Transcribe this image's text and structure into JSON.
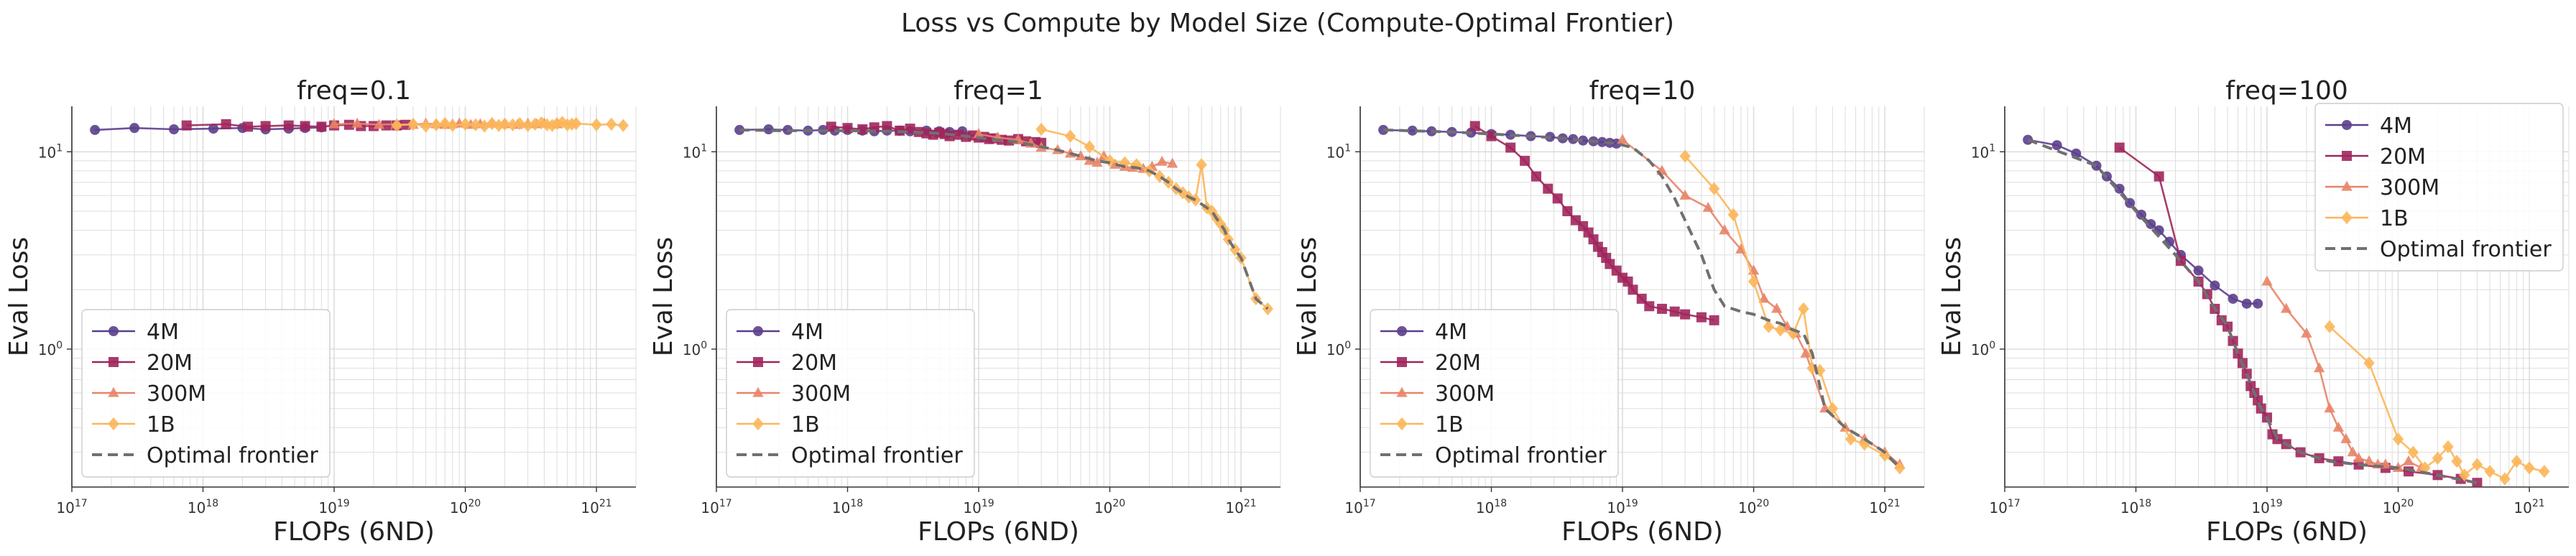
{
  "figure": {
    "title": "Loss vs Compute by Model Size (Compute-Optimal Frontier)"
  },
  "colors": {
    "4M": "#5b3f8c",
    "20M": "#a0265c",
    "300M": "#e88468",
    "1B": "#fbb65a",
    "frontier": "#707070",
    "grid": "#dddddd"
  },
  "chart_data": [
    {
      "type": "line",
      "title": "freq=0.1",
      "xlabel": "FLOPs (6ND)",
      "ylabel": "Eval Loss",
      "xscale": "log",
      "yscale": "log",
      "xlim": [
        1e+17,
        2e+21
      ],
      "ylim": [
        0.2,
        17
      ],
      "xticks": [
        "10^17",
        "10^18",
        "10^19",
        "10^20",
        "10^21"
      ],
      "yticks": [
        "10^0",
        "10^1"
      ],
      "grid": true,
      "legend": "lower-left",
      "series": [
        {
          "name": "4M",
          "marker": "circle",
          "x": [
            1.5e+17,
            3e+17,
            6e+17,
            1.2e+18,
            2e+18,
            3e+18,
            4.5e+18,
            6e+18,
            8e+18
          ],
          "y": [
            12.9,
            13.2,
            13.0,
            13.1,
            13.2,
            13.0,
            13.1,
            13.2,
            13.3
          ]
        },
        {
          "name": "20M",
          "marker": "square",
          "x": [
            7.5e+17,
            1.5e+18,
            2.2e+18,
            3e+18,
            4.5e+18,
            6e+18,
            8e+18,
            1e+19,
            1.3e+19,
            1.6e+19,
            2e+19,
            2.5e+19,
            3e+19,
            3.5e+19
          ],
          "y": [
            13.6,
            13.8,
            13.4,
            13.5,
            13.6,
            13.5,
            13.4,
            13.6,
            13.7,
            13.5,
            13.5,
            13.6,
            13.6,
            13.7
          ]
        },
        {
          "name": "300M",
          "marker": "triangle",
          "x": [
            1e+19,
            1.5e+19,
            2.2e+19,
            3e+19,
            4e+19,
            5e+19,
            6e+19,
            7e+19,
            8e+19,
            9e+19,
            1.1e+20,
            1.3e+20,
            1.6e+20,
            2e+20,
            2.5e+20,
            3e+20,
            3.5e+20,
            4e+20,
            5e+20
          ],
          "y": [
            13.8,
            13.9,
            13.7,
            13.8,
            13.7,
            13.9,
            13.8,
            13.7,
            13.8,
            13.9,
            13.7,
            13.8,
            13.9,
            13.8,
            13.7,
            13.9,
            13.8,
            13.9,
            13.8
          ]
        },
        {
          "name": "1B",
          "marker": "diamond",
          "x": [
            3e+19,
            4e+19,
            5e+19,
            6e+19,
            7e+19,
            8e+19,
            1e+20,
            1.2e+20,
            1.4e+20,
            1.6e+20,
            1.8e+20,
            2e+20,
            2.3e+20,
            2.6e+20,
            3e+20,
            3.4e+20,
            3.8e+20,
            4.2e+20,
            4.6e+20,
            5e+20,
            5.5e+20,
            6e+20,
            6.5e+20,
            7e+20,
            1e+21,
            1.3e+21,
            1.6e+21
          ],
          "y": [
            13.6,
            13.8,
            13.5,
            13.7,
            13.9,
            13.6,
            13.8,
            13.7,
            13.5,
            13.9,
            13.6,
            13.8,
            13.7,
            13.9,
            13.6,
            13.8,
            14.0,
            13.7,
            13.6,
            13.9,
            14.1,
            13.7,
            13.8,
            13.9,
            13.7,
            13.8,
            13.6
          ]
        }
      ],
      "frontier": null
    },
    {
      "type": "line",
      "title": "freq=1",
      "xlabel": "FLOPs (6ND)",
      "ylabel": "Eval Loss",
      "xscale": "log",
      "yscale": "log",
      "xlim": [
        1e+17,
        2e+21
      ],
      "ylim": [
        0.2,
        17
      ],
      "xticks": [
        "10^17",
        "10^18",
        "10^19",
        "10^20",
        "10^21"
      ],
      "yticks": [
        "10^0",
        "10^1"
      ],
      "grid": true,
      "legend": "lower-left",
      "series": [
        {
          "name": "4M",
          "marker": "circle",
          "x": [
            1.5e+17,
            2.5e+17,
            3.5e+17,
            5e+17,
            6.5e+17,
            8e+17,
            1e+18,
            1.3e+18,
            1.6e+18,
            2e+18,
            2.5e+18,
            3e+18,
            4e+18,
            5e+18,
            6e+18,
            7.5e+18
          ],
          "y": [
            12.9,
            13.0,
            12.9,
            12.8,
            12.9,
            12.8,
            12.9,
            12.8,
            12.7,
            12.8,
            12.8,
            12.7,
            12.8,
            12.7,
            12.6,
            12.7
          ]
        },
        {
          "name": "20M",
          "marker": "square",
          "x": [
            7.5e+17,
            1e+18,
            1.3e+18,
            1.6e+18,
            2e+18,
            2.5e+18,
            3e+18,
            3.5e+18,
            4e+18,
            4.5e+18,
            5e+18,
            5.5e+18,
            6e+18,
            7e+18,
            8e+18,
            9e+18,
            1e+19,
            1.1e+19,
            1.2e+19,
            1.3e+19,
            1.5e+19,
            1.7e+19,
            2e+19,
            2.3e+19,
            2.7e+19,
            3e+19
          ],
          "y": [
            13.4,
            13.2,
            13.0,
            13.3,
            13.5,
            12.8,
            13.1,
            12.6,
            12.4,
            12.2,
            12.5,
            12.3,
            12.0,
            12.2,
            11.9,
            12.1,
            11.8,
            11.9,
            11.6,
            11.7,
            11.5,
            11.4,
            11.6,
            11.3,
            11.2,
            11.1
          ]
        },
        {
          "name": "300M",
          "marker": "triangle",
          "x": [
            1e+19,
            1.4e+19,
            2e+19,
            2.5e+19,
            3e+19,
            4e+19,
            5e+19,
            6e+19,
            7e+19,
            8e+19,
            9e+19,
            1.1e+20,
            1.3e+20,
            1.5e+20,
            1.8e+20,
            2.1e+20,
            2.5e+20,
            3e+20
          ],
          "y": [
            12.3,
            11.8,
            11.5,
            11.0,
            10.5,
            10.2,
            9.8,
            9.5,
            9.0,
            8.8,
            9.5,
            8.6,
            8.4,
            8.3,
            8.2,
            8.4,
            8.9,
            8.7
          ]
        },
        {
          "name": "1B",
          "marker": "diamond",
          "x": [
            3e+19,
            5e+19,
            7e+19,
            1e+20,
            1.3e+20,
            1.6e+20,
            2e+20,
            2.4e+20,
            2.8e+20,
            3.2e+20,
            3.6e+20,
            4e+20,
            4.5e+20,
            5e+20,
            5.5e+20,
            6e+20,
            6.5e+20,
            7e+20,
            7.5e+20,
            8e+20,
            9e+20,
            1e+21,
            1.3e+21,
            1.6e+21
          ],
          "y": [
            13.0,
            12.0,
            10.6,
            9.0,
            8.8,
            8.6,
            8.0,
            7.5,
            7.0,
            6.5,
            6.2,
            5.9,
            5.7,
            8.6,
            5.2,
            5.0,
            4.6,
            4.3,
            4.0,
            3.6,
            3.2,
            2.9,
            1.8,
            1.6
          ]
        }
      ],
      "frontier": {
        "name": "Optimal frontier",
        "x": [
          1.5e+17,
          3e+17,
          6e+17,
          1e+18,
          2e+18,
          3e+18,
          5e+18,
          8e+18,
          1.2e+19,
          1.6e+19,
          2e+19,
          3e+19,
          4e+19,
          5e+19,
          6e+19,
          8e+19,
          1e+20,
          1.3e+20,
          1.6e+20,
          2e+20,
          2.4e+20,
          2.8e+20,
          3.2e+20,
          3.6e+20,
          4e+20,
          4.5e+20,
          5.5e+20,
          6e+20,
          6.5e+20,
          7e+20,
          7.5e+20,
          8e+20,
          9e+20,
          1e+21,
          1.3e+21,
          1.6e+21
        ],
        "y": [
          12.9,
          12.8,
          12.8,
          12.8,
          12.7,
          12.6,
          12.4,
          12.0,
          11.6,
          11.4,
          11.2,
          10.6,
          10.2,
          9.8,
          9.5,
          9.0,
          8.8,
          8.4,
          8.3,
          8.0,
          7.5,
          7.0,
          6.5,
          6.2,
          5.9,
          5.7,
          5.2,
          5.0,
          4.6,
          4.3,
          4.0,
          3.6,
          3.2,
          2.9,
          1.8,
          1.6
        ]
      }
    },
    {
      "type": "line",
      "title": "freq=10",
      "xlabel": "FLOPs (6ND)",
      "ylabel": "Eval Loss",
      "xscale": "log",
      "yscale": "log",
      "xlim": [
        1e+17,
        2e+21
      ],
      "ylim": [
        0.2,
        17
      ],
      "xticks": [
        "10^17",
        "10^18",
        "10^19",
        "10^20",
        "10^21"
      ],
      "yticks": [
        "10^0",
        "10^1"
      ],
      "grid": true,
      "legend": "lower-left",
      "series": [
        {
          "name": "4M",
          "marker": "circle",
          "x": [
            1.5e+17,
            2.5e+17,
            3.5e+17,
            5e+17,
            7e+17,
            1e+18,
            1.4e+18,
            2e+18,
            2.8e+18,
            3.5e+18,
            4.2e+18,
            5e+18,
            6e+18,
            7e+18,
            8e+18,
            9e+18
          ],
          "y": [
            12.9,
            12.8,
            12.7,
            12.6,
            12.5,
            12.3,
            12.2,
            12.0,
            11.9,
            11.7,
            11.6,
            11.4,
            11.3,
            11.2,
            11.1,
            11.0
          ]
        },
        {
          "name": "20M",
          "marker": "square",
          "x": [
            7.5e+17,
            1e+18,
            1.4e+18,
            1.8e+18,
            2.2e+18,
            2.7e+18,
            3.2e+18,
            3.8e+18,
            4.4e+18,
            5e+18,
            5.5e+18,
            6e+18,
            6.5e+18,
            7e+18,
            7.5e+18,
            8e+18,
            9e+18,
            1e+19,
            1.1e+19,
            1.2e+19,
            1.4e+19,
            1.6e+19,
            2e+19,
            2.5e+19,
            3e+19,
            4e+19,
            5e+19
          ],
          "y": [
            13.5,
            12.0,
            10.5,
            9.0,
            7.5,
            6.5,
            5.8,
            5.0,
            4.5,
            4.2,
            3.9,
            3.6,
            3.3,
            3.1,
            2.9,
            2.7,
            2.5,
            2.3,
            2.2,
            2.0,
            1.8,
            1.65,
            1.6,
            1.55,
            1.5,
            1.45,
            1.4
          ]
        },
        {
          "name": "300M",
          "marker": "triangle",
          "x": [
            1e+19,
            2e+19,
            3e+19,
            4.5e+19,
            6e+19,
            8e+19,
            1e+20,
            1.2e+20,
            1.5e+20,
            1.8e+20,
            2.1e+20,
            2.5e+20,
            3.5e+20,
            5e+20,
            7e+20,
            1e+21,
            1.3e+21
          ],
          "y": [
            11.5,
            8.0,
            6.0,
            5.2,
            4.0,
            3.2,
            2.5,
            1.8,
            1.6,
            1.3,
            1.2,
            0.95,
            0.5,
            0.4,
            0.35,
            0.3,
            0.26
          ]
        },
        {
          "name": "1B",
          "marker": "diamond",
          "x": [
            3e+19,
            5e+19,
            7e+19,
            1e+20,
            1.3e+20,
            1.6e+20,
            2e+20,
            2.4e+20,
            2.8e+20,
            3.2e+20,
            4e+20,
            5.5e+20,
            7e+20,
            1e+21,
            1.3e+21
          ],
          "y": [
            9.5,
            6.5,
            4.8,
            2.2,
            1.3,
            1.25,
            1.2,
            1.6,
            0.8,
            0.78,
            0.5,
            0.35,
            0.33,
            0.29,
            0.25
          ]
        }
      ],
      "frontier": {
        "name": "Optimal frontier",
        "x": [
          1.5e+17,
          5e+17,
          1e+18,
          2e+18,
          3.5e+18,
          5e+18,
          7e+18,
          9e+18,
          1.2e+19,
          1.6e+19,
          2e+19,
          2.5e+19,
          3e+19,
          4e+19,
          5e+19,
          6e+19,
          8e+19,
          1e+20,
          1.3e+20,
          1.6e+20,
          2e+20,
          2.4e+20,
          2.8e+20,
          3.5e+20,
          5e+20,
          7e+20,
          1e+21,
          1.3e+21
        ],
        "y": [
          12.9,
          12.6,
          12.3,
          12.0,
          11.7,
          11.4,
          11.2,
          11.0,
          10.5,
          9.0,
          7.5,
          5.8,
          4.5,
          3.0,
          2.0,
          1.65,
          1.55,
          1.5,
          1.4,
          1.35,
          1.25,
          1.2,
          0.95,
          0.5,
          0.4,
          0.35,
          0.3,
          0.25
        ]
      }
    },
    {
      "type": "line",
      "title": "freq=100",
      "xlabel": "FLOPs (6ND)",
      "ylabel": "Eval Loss",
      "xscale": "log",
      "yscale": "log",
      "xlim": [
        1e+17,
        2e+21
      ],
      "ylim": [
        0.2,
        17
      ],
      "xticks": [
        "10^17",
        "10^18",
        "10^19",
        "10^20",
        "10^21"
      ],
      "yticks": [
        "10^0",
        "10^1"
      ],
      "grid": true,
      "legend": "upper-right",
      "series": [
        {
          "name": "4M",
          "marker": "circle",
          "x": [
            1.5e+17,
            2.5e+17,
            3.5e+17,
            5e+17,
            6e+17,
            7.5e+17,
            9e+17,
            1.1e+18,
            1.3e+18,
            1.5e+18,
            1.8e+18,
            2.2e+18,
            3e+18,
            4e+18,
            5.5e+18,
            7e+18,
            8.5e+18
          ],
          "y": [
            11.5,
            10.8,
            9.8,
            8.5,
            7.5,
            6.5,
            5.5,
            4.8,
            4.3,
            4.0,
            3.5,
            3.0,
            2.5,
            2.1,
            1.8,
            1.7,
            1.7
          ]
        },
        {
          "name": "20M",
          "marker": "square",
          "x": [
            7.5e+17,
            1.5e+18,
            2.2e+18,
            3e+18,
            3.5e+18,
            4e+18,
            4.5e+18,
            5e+18,
            5.5e+18,
            6e+18,
            6.5e+18,
            7e+18,
            7.5e+18,
            8e+18,
            8.5e+18,
            9e+18,
            1e+19,
            1.1e+19,
            1.2e+19,
            1.4e+19,
            1.8e+19,
            2.5e+19,
            3.5e+19,
            5e+19,
            8e+19,
            1.2e+20,
            2e+20,
            3e+20,
            4e+20
          ],
          "y": [
            10.5,
            7.5,
            2.8,
            2.2,
            1.9,
            1.6,
            1.4,
            1.3,
            1.1,
            0.95,
            0.85,
            0.75,
            0.65,
            0.6,
            0.55,
            0.5,
            0.45,
            0.37,
            0.35,
            0.33,
            0.3,
            0.28,
            0.27,
            0.26,
            0.25,
            0.24,
            0.23,
            0.22,
            0.21
          ]
        },
        {
          "name": "300M",
          "marker": "triangle",
          "x": [
            1e+19,
            1.4e+19,
            2e+19,
            2.5e+19,
            3e+19,
            3.5e+19,
            4e+19,
            4.5e+19,
            5e+19,
            6e+19,
            7e+19,
            8e+19,
            1e+20,
            1.2e+20,
            1.5e+20
          ],
          "y": [
            2.2,
            1.6,
            1.2,
            0.8,
            0.5,
            0.4,
            0.35,
            0.3,
            0.28,
            0.27,
            0.26,
            0.26,
            0.25,
            0.27,
            0.25
          ]
        },
        {
          "name": "1B",
          "marker": "diamond",
          "x": [
            3e+19,
            6e+19,
            1e+20,
            1.3e+20,
            1.6e+20,
            2e+20,
            2.4e+20,
            2.8e+20,
            3.2e+20,
            4e+20,
            5e+20,
            6.5e+20,
            8e+20,
            1e+21,
            1.3e+21
          ],
          "y": [
            1.3,
            0.85,
            0.35,
            0.3,
            0.25,
            0.28,
            0.32,
            0.27,
            0.23,
            0.26,
            0.24,
            0.22,
            0.27,
            0.25,
            0.24
          ]
        }
      ],
      "frontier": {
        "name": "Optimal frontier",
        "x": [
          1.5e+17,
          5e+17,
          1e+18,
          2e+18,
          3e+18,
          4e+18,
          5e+18,
          6e+18,
          7e+18,
          8e+18,
          9e+18,
          1e+19,
          1.2e+19,
          1.8e+19,
          3e+19,
          5e+19,
          1e+20,
          2e+20,
          4e+20
        ],
        "y": [
          11.5,
          8.5,
          5.0,
          3.0,
          2.2,
          1.6,
          1.3,
          0.95,
          0.75,
          0.6,
          0.5,
          0.45,
          0.35,
          0.3,
          0.27,
          0.26,
          0.25,
          0.23,
          0.21
        ]
      }
    }
  ]
}
